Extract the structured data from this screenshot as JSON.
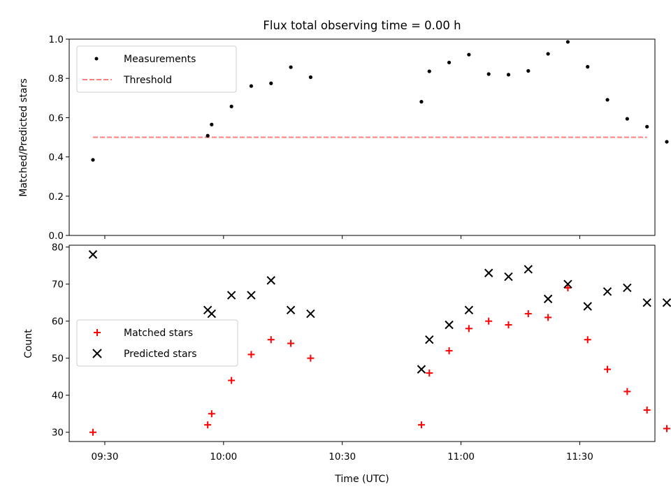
{
  "colors": {
    "measurements": "#000000",
    "threshold": "#ff7f7f",
    "matched": "#ff0000",
    "predicted": "#000000"
  },
  "chart_data": [
    {
      "type": "scatter",
      "title": "Flux total observing time = 0.00 h",
      "xlabel": "",
      "ylabel": "Matched/Predicted stars",
      "xlim": [
        "09:21",
        "11:49"
      ],
      "ylim": [
        0.0,
        1.0
      ],
      "yticks": [
        "0.0",
        "0.2",
        "0.4",
        "0.6",
        "0.8",
        "1.0"
      ],
      "legend_position": "top-left",
      "grid": false,
      "series": [
        {
          "name": "Measurements",
          "marker": "dot",
          "x": [
            "09:27",
            "09:56",
            "09:57",
            "10:02",
            "10:07",
            "10:12",
            "10:17",
            "10:22",
            "10:50",
            "10:52",
            "10:57",
            "11:02",
            "11:07",
            "11:12",
            "11:17",
            "11:22",
            "11:27",
            "11:32",
            "11:37",
            "11:42",
            "11:47",
            "11:52"
          ],
          "y": [
            0.385,
            0.508,
            0.565,
            0.657,
            0.761,
            0.775,
            0.857,
            0.806,
            0.681,
            0.836,
            0.881,
            0.921,
            0.822,
            0.819,
            0.838,
            0.925,
            0.986,
            0.859,
            0.691,
            0.594,
            0.554,
            0.477
          ]
        },
        {
          "name": "Threshold",
          "marker": "dashed-line",
          "x": [
            "09:27",
            "11:47"
          ],
          "y": [
            0.5,
            0.5
          ]
        }
      ]
    },
    {
      "type": "scatter",
      "xlabel": "Time (UTC)",
      "ylabel": "Count",
      "xlim": [
        "09:21",
        "11:49"
      ],
      "ylim": [
        27.5,
        80.5
      ],
      "xticks": [
        "09:30",
        "10:00",
        "10:30",
        "11:00",
        "11:30"
      ],
      "yticks": [
        "30",
        "40",
        "50",
        "60",
        "70",
        "80"
      ],
      "legend_position": "center-left",
      "grid": false,
      "series": [
        {
          "name": "Matched stars",
          "marker": "plus",
          "x": [
            "09:27",
            "09:56",
            "09:57",
            "10:02",
            "10:07",
            "10:12",
            "10:17",
            "10:22",
            "10:50",
            "10:52",
            "10:57",
            "11:02",
            "11:07",
            "11:12",
            "11:17",
            "11:22",
            "11:27",
            "11:32",
            "11:37",
            "11:42",
            "11:47",
            "11:52"
          ],
          "y": [
            30,
            32,
            35,
            44,
            51,
            55,
            54,
            50,
            32,
            46,
            52,
            58,
            60,
            59,
            62,
            61,
            69,
            55,
            47,
            41,
            36,
            31
          ]
        },
        {
          "name": "Predicted stars",
          "marker": "x",
          "x": [
            "09:27",
            "09:56",
            "09:57",
            "10:02",
            "10:07",
            "10:12",
            "10:17",
            "10:22",
            "10:50",
            "10:52",
            "10:57",
            "11:02",
            "11:07",
            "11:12",
            "11:17",
            "11:22",
            "11:27",
            "11:32",
            "11:37",
            "11:42",
            "11:47",
            "11:52"
          ],
          "y": [
            78,
            63,
            62,
            67,
            67,
            71,
            63,
            62,
            47,
            55,
            59,
            63,
            73,
            72,
            74,
            66,
            70,
            64,
            68,
            69,
            65,
            65
          ]
        }
      ]
    }
  ]
}
